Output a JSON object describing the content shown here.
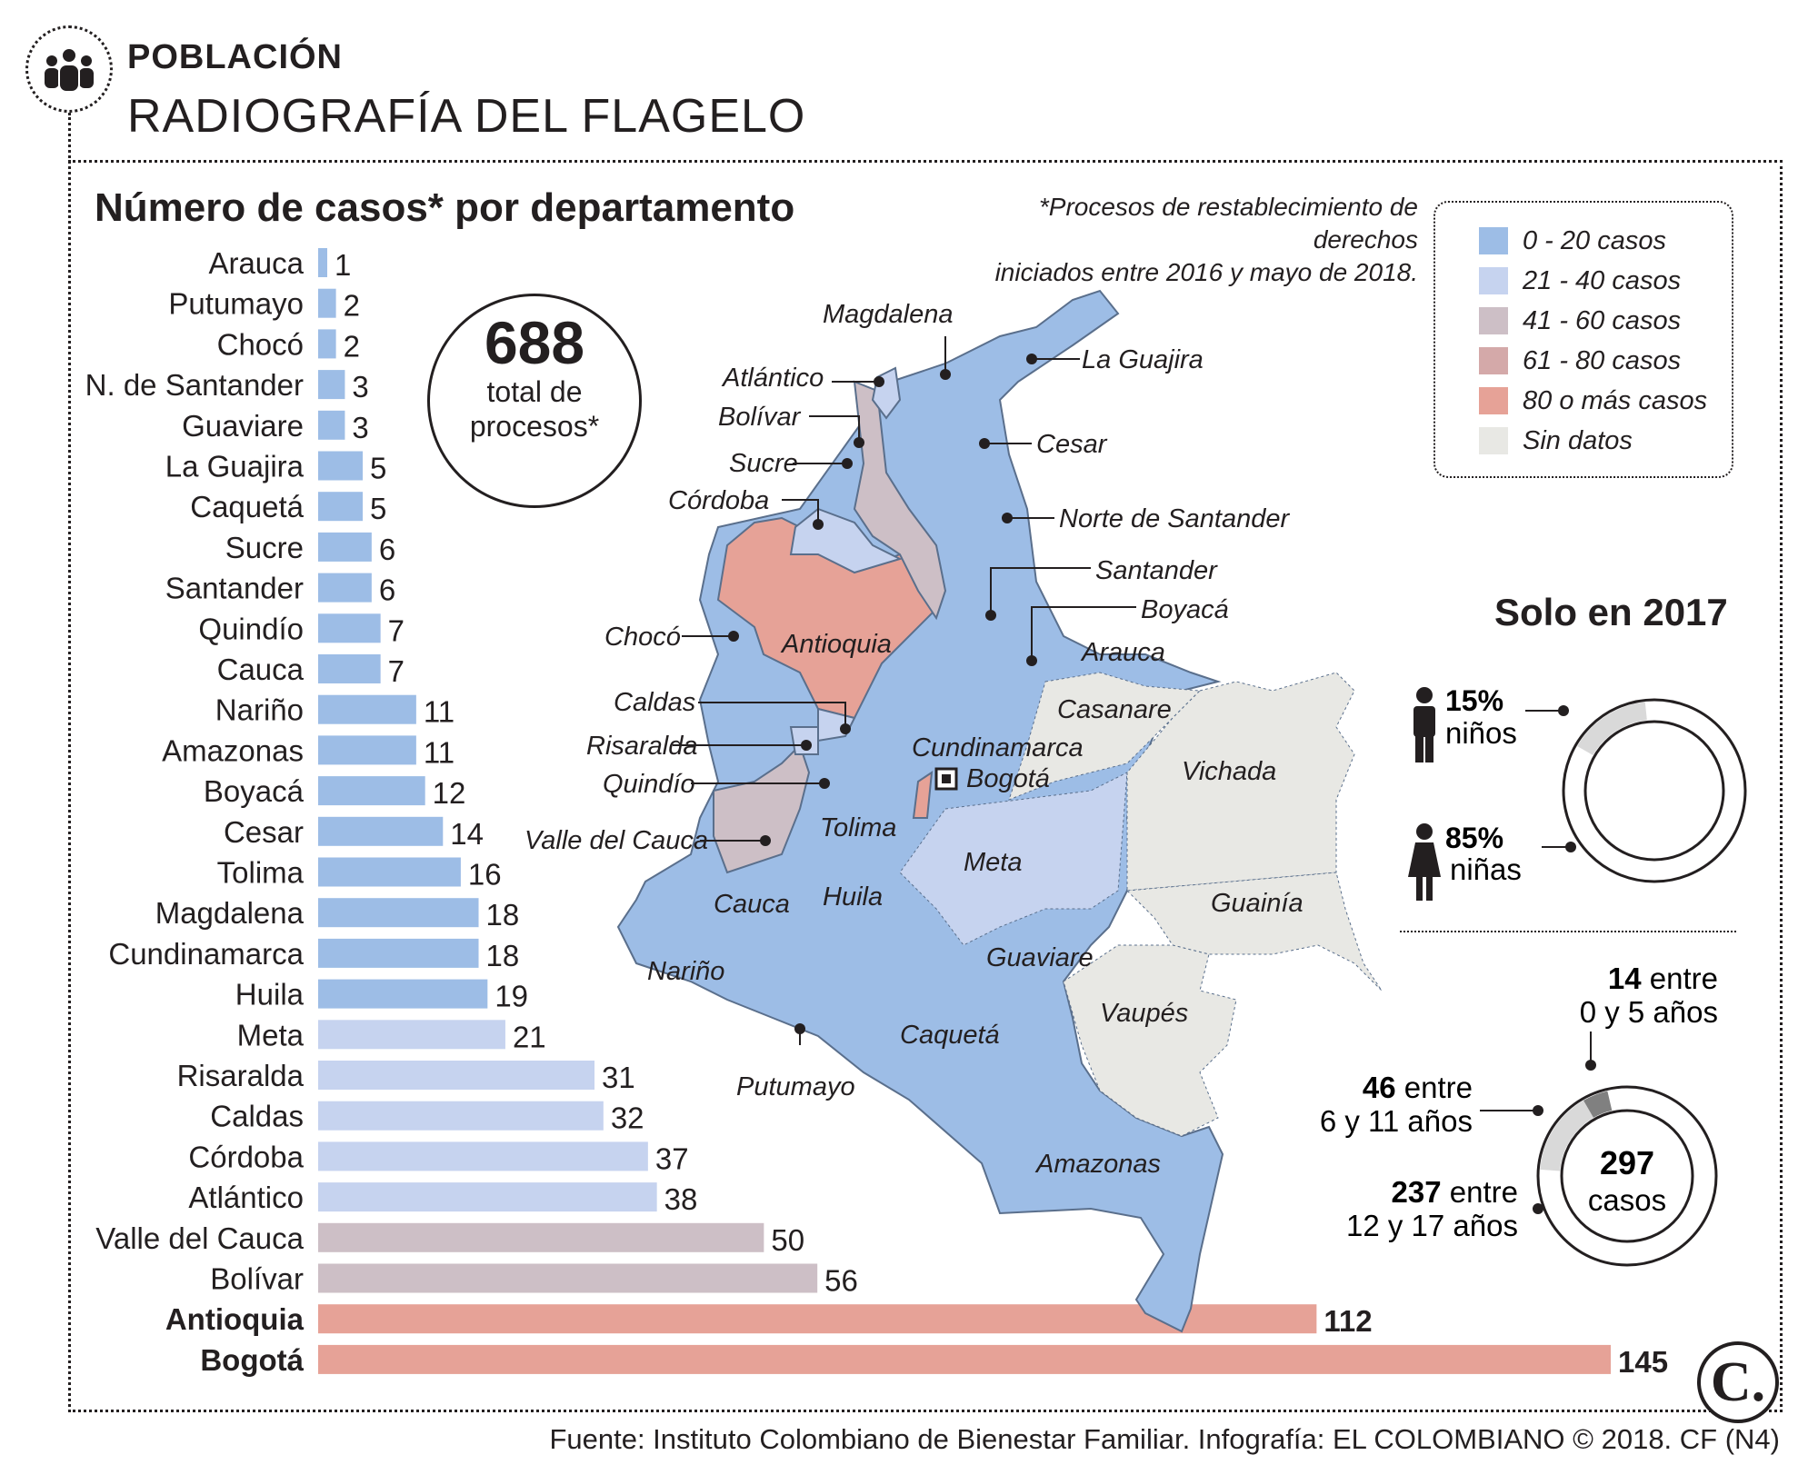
{
  "header": {
    "section": "POBLACIÓN",
    "title": "RADIOGRAFÍA DEL FLAGELO",
    "icon": "people-group-icon"
  },
  "chart_data": [
    {
      "type": "bar",
      "orientation": "horizontal",
      "title": "Número de casos* por departamento",
      "categories": [
        "Arauca",
        "Putumayo",
        "Chocó",
        "N. de Santander",
        "Guaviare",
        "La Guajira",
        "Caquetá",
        "Sucre",
        "Santander",
        "Quindío",
        "Cauca",
        "Nariño",
        "Amazonas",
        "Boyacá",
        "Cesar",
        "Tolima",
        "Magdalena",
        "Cundinamarca",
        "Huila",
        "Meta",
        "Risaralda",
        "Caldas",
        "Córdoba",
        "Atlántico",
        "Valle del Cauca",
        "Bolívar",
        "Antioquia",
        "Bogotá"
      ],
      "values": [
        1,
        2,
        2,
        3,
        3,
        5,
        5,
        6,
        6,
        7,
        7,
        11,
        11,
        12,
        14,
        16,
        18,
        18,
        19,
        21,
        31,
        32,
        37,
        38,
        50,
        56,
        112,
        145
      ],
      "bold_categories": [
        "Antioquia",
        "Bogotá"
      ],
      "xlim": [
        0,
        145
      ],
      "grid": false
    },
    {
      "type": "pie",
      "title": "Solo en 2017",
      "categories": [
        "niños",
        "niñas"
      ],
      "values": [
        15,
        85
      ],
      "unit": "%"
    },
    {
      "type": "pie",
      "center_value": 297,
      "center_label": "casos",
      "categories": [
        "0 y 5 años",
        "6 y 11 años",
        "12 y 17 años"
      ],
      "values": [
        14,
        46,
        237
      ]
    }
  ],
  "footnote": {
    "line1": "*Procesos de restablecimiento de derechos",
    "line2": "iniciados entre 2016 y mayo de 2018."
  },
  "total": {
    "value": "688",
    "label": "total de procesos*"
  },
  "legend": {
    "placement": "top-right",
    "items": [
      {
        "label": "0 - 20 casos",
        "color": "#9dbde6"
      },
      {
        "label": "21 - 40 casos",
        "color": "#c6d3ef"
      },
      {
        "label": "41 - 60 casos",
        "color": "#cdbfc6"
      },
      {
        "label": "61 - 80 casos",
        "color": "#d4a9a9"
      },
      {
        "label": "80 o más casos",
        "color": "#e6a297"
      },
      {
        "label": "Sin datos",
        "color": "#e8e8e4"
      }
    ]
  },
  "map": {
    "labels": [
      "Magdalena",
      "La Guajira",
      "Atlántico",
      "Bolívar",
      "Cesar",
      "Sucre",
      "Córdoba",
      "Norte de Santander",
      "Santander",
      "Boyacá",
      "Chocó",
      "Antioquia",
      "Arauca",
      "Caldas",
      "Casanare",
      "Risaralda",
      "Cundinamarca",
      "Bogotá",
      "Quindío",
      "Vichada",
      "Tolima",
      "Valle del Cauca",
      "Meta",
      "Cauca",
      "Huila",
      "Guainía",
      "Nariño",
      "Guaviare",
      "Vaupés",
      "Caquetá",
      "Putumayo",
      "Amazonas"
    ]
  },
  "solo2017": {
    "title": "Solo en 2017",
    "ninos_pct": "15%",
    "ninos_label": "niños",
    "ninas_pct": "85%",
    "ninas_label": "niñas",
    "ages": [
      {
        "count": "14",
        "line1": "entre",
        "line2": "0 y 5 años"
      },
      {
        "count": "46",
        "line1": "entre",
        "line2": "6 y 11 años"
      },
      {
        "count": "237",
        "line1": "entre",
        "line2": "12 y 17 años"
      }
    ],
    "total_value": "297",
    "total_label": "casos"
  },
  "colors": {
    "low": "#9dbde6",
    "midlow": "#c6d3ef",
    "mid": "#cdbfc6",
    "high": "#e6a297",
    "nodata": "#e8e8e4",
    "donut_light": "#d9d9d9",
    "donut_dark": "#808080"
  },
  "footer": {
    "source": "Fuente: Instituto Colombiano de Bienestar Familiar. Infografía: EL COLOMBIANO © 2018. CF (N4)",
    "logo": "C."
  }
}
